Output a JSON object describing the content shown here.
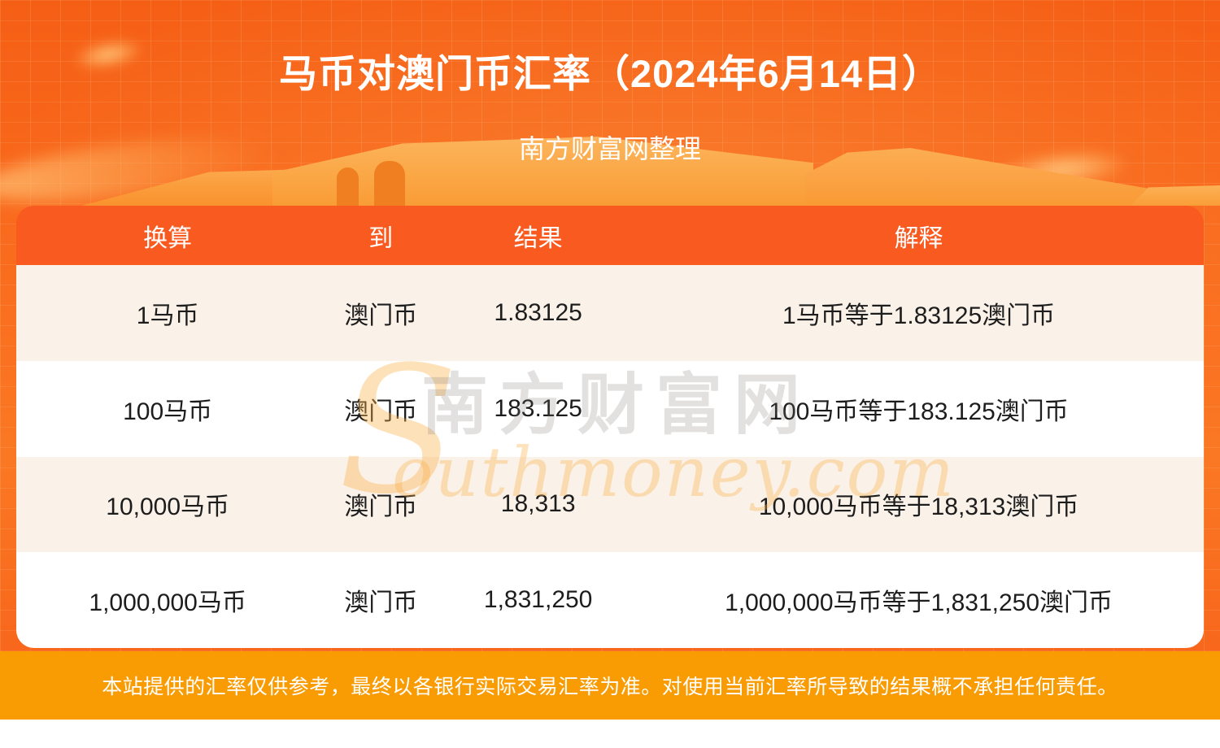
{
  "page": {
    "title": "马币对澳门币汇率（2024年6月14日）",
    "subtitle": "南方财富网整理",
    "disclaimer": "本站提供的汇率仅供参考，最终以各银行实际交易汇率为准。对使用当前汇率所导致的结果概不承担任何责任。"
  },
  "watermark": {
    "initial": "S",
    "brand_cn": "南方财富网",
    "brand_rest": "outhmoney.com"
  },
  "colors": {
    "page_background_orange": "#f8681c",
    "table_header_bg": "#f95a1f",
    "row_stripe_bg": "#faf1e8",
    "row_white_bg": "#ffffff",
    "disclaimer_bar_bg": "#f99c04",
    "cell_text": "#1d1d1d",
    "heading_text": "#ffffff"
  },
  "chart_data": {
    "type": "table",
    "title": "马币对澳门币汇率（2024年6月14日）",
    "subtitle": "南方财富网整理",
    "columns": [
      "换算",
      "到",
      "结果",
      "解释"
    ],
    "rows": [
      [
        "1马币",
        "澳门币",
        "1.83125",
        "1马币等于1.83125澳门币"
      ],
      [
        "100马币",
        "澳门币",
        "183.125",
        "100马币等于183.125澳门币"
      ],
      [
        "10,000马币",
        "澳门币",
        "18,313",
        "10,000马币等于18,313澳门币"
      ],
      [
        "1,000,000马币",
        "澳门币",
        "1,831,250",
        "1,000,000马币等于1,831,250澳门币"
      ]
    ],
    "base_currency": "马币",
    "quote_currency": "澳门币",
    "rate": 1.83125,
    "date": "2024年6月14日"
  }
}
